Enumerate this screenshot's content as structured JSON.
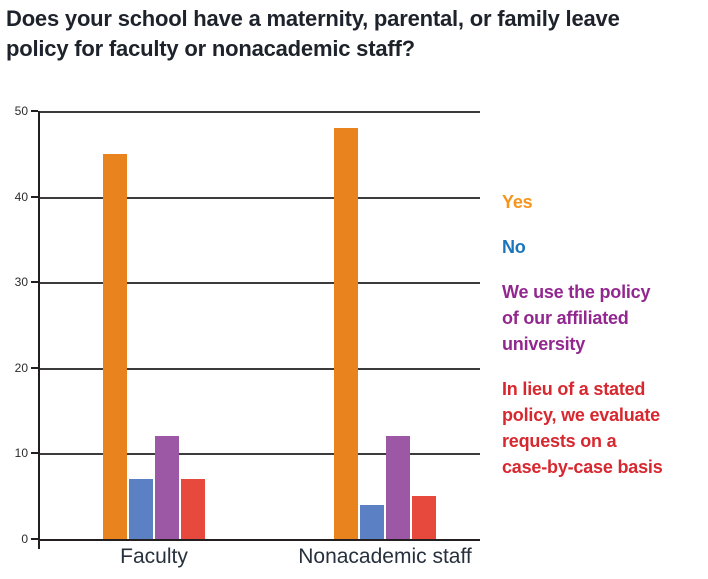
{
  "title": "Does your school have a maternity, parental, or family leave policy for faculty or nonacademic staff?",
  "chart_data": {
    "type": "bar",
    "title": "Does your school have a maternity, parental, or family leave policy for faculty or nonacademic staff?",
    "categories": [
      "Faculty",
      "Nonacademic staff"
    ],
    "series": [
      {
        "name": "Yes",
        "values": [
          45,
          48
        ],
        "bar_color": "#e8831e",
        "legend_color": "#f7941d",
        "legend_lines": [
          "Yes"
        ]
      },
      {
        "name": "No",
        "values": [
          7,
          4
        ],
        "bar_color": "#5b80c3",
        "legend_color": "#1b75bb",
        "legend_lines": [
          "No"
        ]
      },
      {
        "name": "We use the policy of our affiliated university",
        "values": [
          12,
          12
        ],
        "bar_color": "#9c57a5",
        "legend_color": "#92278f",
        "legend_lines": [
          "We use the policy",
          "of our affiliated",
          "university"
        ]
      },
      {
        "name": "In lieu of a stated policy, we evaluate requests on a case-by-case basis",
        "values": [
          7,
          5
        ],
        "bar_color": "#e74a3c",
        "legend_color": "#d7282f",
        "legend_lines": [
          "In lieu of a stated",
          "policy, we evaluate",
          "requests on a",
          "case-by-case basis"
        ]
      }
    ],
    "xlabel": "",
    "ylabel": "",
    "ylim": [
      0,
      50
    ],
    "yticks": [
      0,
      10,
      20,
      30,
      40,
      50
    ],
    "grid": true,
    "legend_position": "right",
    "axis_color": "#231f20",
    "grid_color": "#3b3b3b"
  }
}
